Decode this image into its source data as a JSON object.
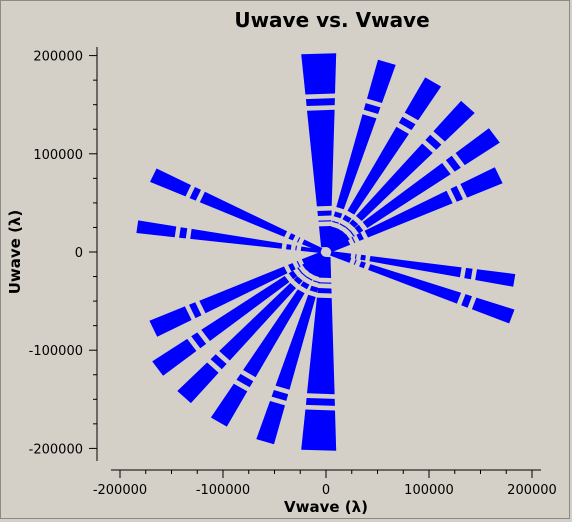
{
  "chart_data": {
    "type": "scatter",
    "title": "Uwave vs. Vwave",
    "xlabel": "Vwave (λ)",
    "ylabel": "Uwave (λ)",
    "xlim": [
      -210000,
      210000
    ],
    "ylim": [
      -210000,
      210000
    ],
    "x_ticks": [
      -200000,
      -100000,
      0,
      100000,
      200000
    ],
    "x_tick_labels": [
      "-200000",
      "-100000",
      "0",
      "100000",
      "200000"
    ],
    "y_ticks": [
      200000,
      100000,
      0,
      -100000,
      -200000
    ],
    "y_tick_labels": [
      "200000",
      "100000",
      "0",
      "-100000",
      "-200000"
    ],
    "grid": false,
    "point_color": "#0000ff",
    "spokes": [
      {
        "angle": 92,
        "rmin": 5000,
        "rmax": 202000,
        "width": 34000
      },
      {
        "angle": 73,
        "rmin": 5000,
        "rmax": 202000,
        "width": 18000
      },
      {
        "angle": 59,
        "rmin": 5000,
        "rmax": 202000,
        "width": 18000
      },
      {
        "angle": 47,
        "rmin": 5000,
        "rmax": 202000,
        "width": 18000
      },
      {
        "angle": 36,
        "rmin": 5000,
        "rmax": 202000,
        "width": 18000
      },
      {
        "angle": 25,
        "rmin": 5000,
        "rmax": 185000,
        "width": 18000
      },
      {
        "angle": -9,
        "rmin": 5000,
        "rmax": 185000,
        "width": 13000
      },
      {
        "angle": -20,
        "rmin": 5000,
        "rmax": 192000,
        "width": 15000
      },
      {
        "angle": 155,
        "rmin": 5000,
        "rmax": 185000,
        "width": 15000
      },
      {
        "angle": 172,
        "rmin": 5000,
        "rmax": 185000,
        "width": 13000
      },
      {
        "angle": -92,
        "rmin": 5000,
        "rmax": 202000,
        "width": 34000
      },
      {
        "angle": -107,
        "rmin": 5000,
        "rmax": 202000,
        "width": 18000
      },
      {
        "angle": -121,
        "rmin": 5000,
        "rmax": 202000,
        "width": 18000
      },
      {
        "angle": -133,
        "rmin": 5000,
        "rmax": 202000,
        "width": 18000
      },
      {
        "angle": -144,
        "rmin": 5000,
        "rmax": 202000,
        "width": 18000
      },
      {
        "angle": -155,
        "rmin": 5000,
        "rmax": 185000,
        "width": 18000
      }
    ],
    "gap_fractions": [
      0.12,
      0.15,
      0.2,
      0.72,
      0.78
    ]
  }
}
